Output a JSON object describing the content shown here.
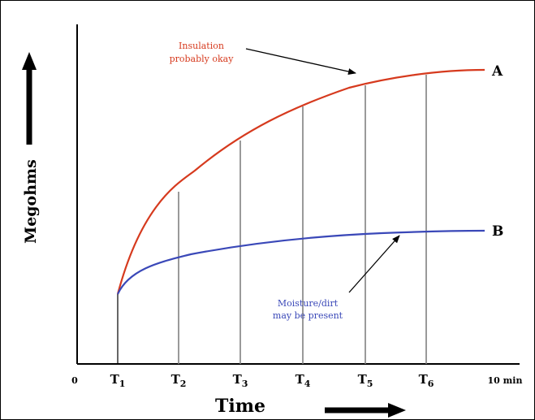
{
  "chart_data": {
    "type": "line",
    "ylabel": "Megohms",
    "xlabel": "Time",
    "x_ticks": [
      {
        "main": "0",
        "sub": ""
      },
      {
        "main": "T",
        "sub": "1"
      },
      {
        "main": "T",
        "sub": "2"
      },
      {
        "main": "T",
        "sub": "3"
      },
      {
        "main": "T",
        "sub": "4"
      },
      {
        "main": "T",
        "sub": "5"
      },
      {
        "main": "T",
        "sub": "6"
      },
      {
        "main": "10 min",
        "sub": ""
      }
    ],
    "series": [
      {
        "name": "A",
        "color": "#d63a1e"
      },
      {
        "name": "B",
        "color": "#3a48b8"
      }
    ],
    "annotations": [
      {
        "lines": [
          "Insulation",
          "probably okay"
        ],
        "color": "#d63a1e",
        "points_to": "A"
      },
      {
        "lines": [
          "Moisture/dirt",
          "may be present"
        ],
        "color": "#3a48b8",
        "points_to": "B"
      }
    ],
    "grid": false,
    "colors": {
      "axis": "#000000",
      "guide": "#808080"
    }
  }
}
